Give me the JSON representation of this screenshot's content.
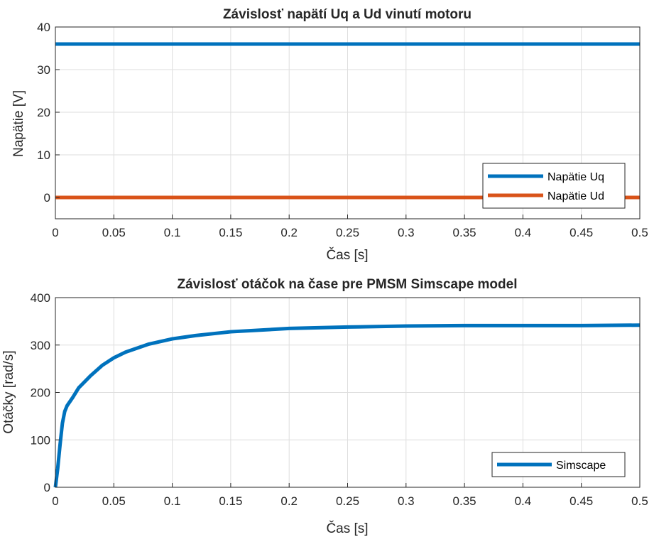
{
  "chart_data": [
    {
      "type": "line",
      "title": "Závislosť napätí Uq a Ud vinutí motoru",
      "xlabel": "Čas [s]",
      "ylabel": "Napätie [V]",
      "xlim": [
        0,
        0.5
      ],
      "ylim": [
        -5,
        40
      ],
      "xticks": [
        0,
        0.05,
        0.1,
        0.15,
        0.2,
        0.25,
        0.3,
        0.35,
        0.4,
        0.45,
        0.5
      ],
      "xtick_labels": [
        "0",
        "0.05",
        "0.1",
        "0.15",
        "0.2",
        "0.25",
        "0.3",
        "0.35",
        "0.4",
        "0.45",
        "0.5"
      ],
      "yticks": [
        0,
        10,
        20,
        30,
        40
      ],
      "ytick_labels": [
        "0",
        "10",
        "20",
        "30",
        "40"
      ],
      "grid": true,
      "legend_position": "bottom-right",
      "series": [
        {
          "name": "Napätie Uq",
          "color": "#0072BD",
          "x": [
            0,
            0.5
          ],
          "y": [
            36,
            36
          ]
        },
        {
          "name": "Napätie Ud",
          "color": "#D95319",
          "x": [
            0,
            0.5
          ],
          "y": [
            0,
            0
          ]
        }
      ]
    },
    {
      "type": "line",
      "title": "Závislosť otáčok na čase pre PMSM Simscape model",
      "xlabel": "Čas [s]",
      "ylabel": "Otáčky [rad/s]",
      "xlim": [
        0,
        0.5
      ],
      "ylim": [
        0,
        400
      ],
      "xticks": [
        0,
        0.05,
        0.1,
        0.15,
        0.2,
        0.25,
        0.3,
        0.35,
        0.4,
        0.45,
        0.5
      ],
      "xtick_labels": [
        "0",
        "0.05",
        "0.1",
        "0.15",
        "0.2",
        "0.25",
        "0.3",
        "0.35",
        "0.4",
        "0.45",
        "0.5"
      ],
      "yticks": [
        0,
        100,
        200,
        300,
        400
      ],
      "ytick_labels": [
        "0",
        "100",
        "200",
        "300",
        "400"
      ],
      "grid": true,
      "legend_position": "bottom-right",
      "series": [
        {
          "name": "Simscape",
          "color": "#0072BD",
          "x": [
            0,
            0.002,
            0.004,
            0.006,
            0.008,
            0.01,
            0.015,
            0.02,
            0.03,
            0.04,
            0.05,
            0.06,
            0.08,
            0.1,
            0.12,
            0.15,
            0.2,
            0.25,
            0.3,
            0.35,
            0.4,
            0.45,
            0.5
          ],
          "y": [
            0,
            40,
            90,
            135,
            160,
            172,
            190,
            210,
            235,
            257,
            273,
            285,
            302,
            313,
            320,
            328,
            335,
            338,
            340,
            341,
            341,
            341,
            342
          ]
        }
      ]
    }
  ]
}
